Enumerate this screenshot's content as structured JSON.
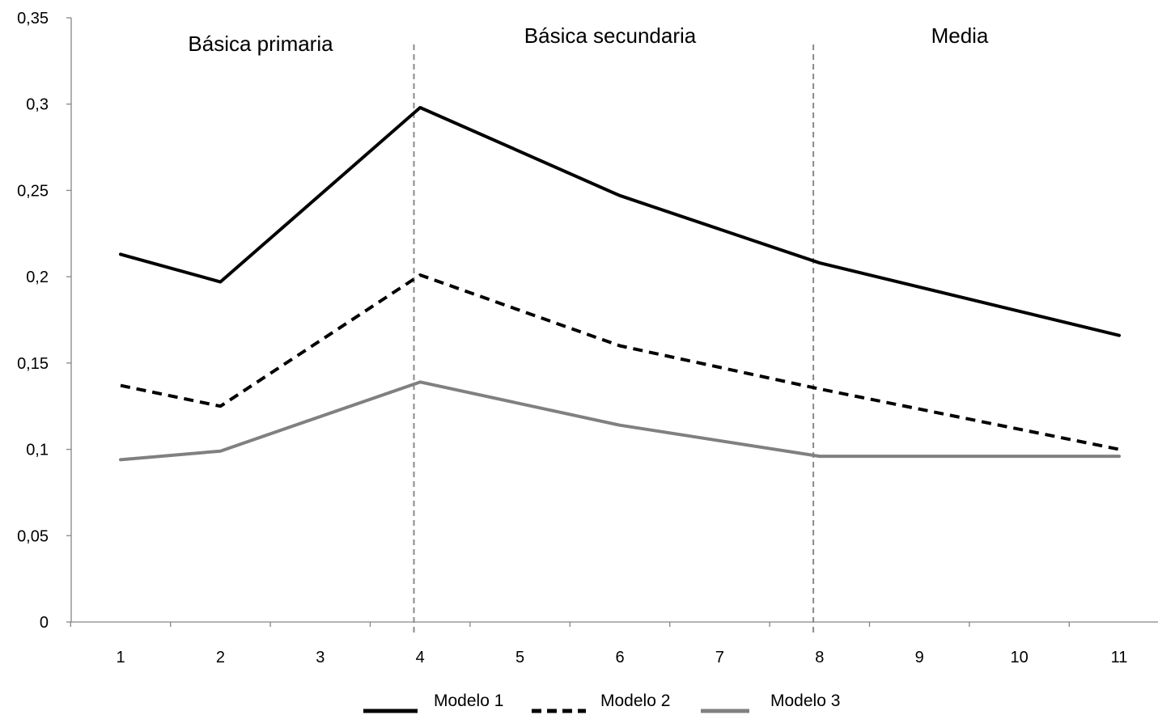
{
  "chart_data": {
    "type": "line",
    "title": "",
    "xlabel": "",
    "ylabel": "",
    "categories": [
      "1",
      "2",
      "3",
      "4",
      "5",
      "6",
      "7",
      "8",
      "9",
      "10",
      "11"
    ],
    "ylim": [
      0,
      0.35
    ],
    "y_ticks": [
      "0",
      "0,05",
      "0,1",
      "0,15",
      "0,2",
      "0,25",
      "0,3",
      "0,35"
    ],
    "grid": false,
    "legend_position": "bottom",
    "series": [
      {
        "name": "Modelo 1",
        "style": "solid",
        "color": "#000000",
        "values": [
          0.213,
          0.197,
          null,
          0.298,
          null,
          0.247,
          null,
          0.208,
          null,
          null,
          0.166
        ]
      },
      {
        "name": "Modelo 2",
        "style": "dashed",
        "color": "#000000",
        "values": [
          0.137,
          0.125,
          null,
          0.201,
          null,
          0.16,
          null,
          0.135,
          null,
          null,
          0.1
        ]
      },
      {
        "name": "Modelo 3",
        "style": "solid",
        "color": "#808080",
        "values": [
          0.094,
          0.099,
          null,
          0.139,
          null,
          0.114,
          null,
          0.096,
          null,
          null,
          0.096
        ]
      }
    ],
    "sections": [
      {
        "label": "Básica primaria"
      },
      {
        "label": "Básica secundaria"
      },
      {
        "label": "Media"
      }
    ],
    "dividers_after_category": [
      "4",
      "8"
    ]
  }
}
